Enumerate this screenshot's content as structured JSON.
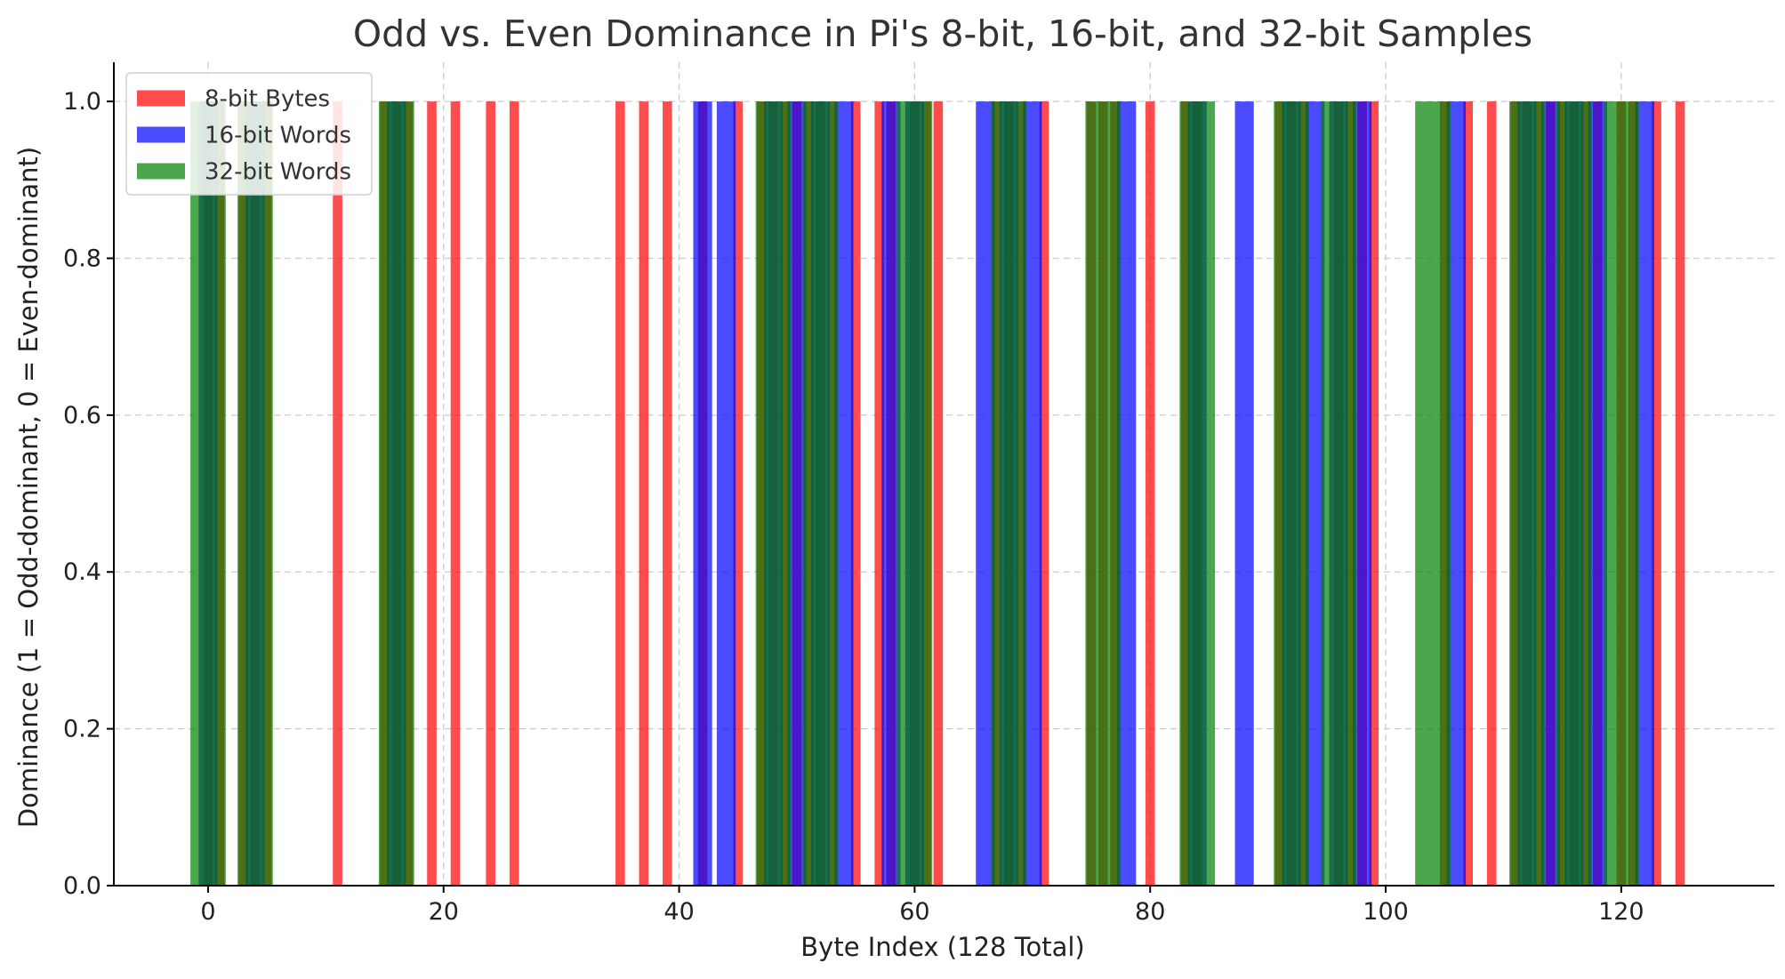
{
  "chart_data": {
    "type": "bar",
    "title": "Odd vs. Even Dominance in Pi's 8-bit, 16-bit, and 32-bit Samples",
    "xlabel": "Byte Index (128 Total)",
    "ylabel": "Dominance (1 = Odd-dominant, 0 = Even-dominant)",
    "xlim": [
      -8,
      133
    ],
    "ylim": [
      0,
      1.05
    ],
    "xticks": [
      0,
      20,
      40,
      60,
      80,
      100,
      120
    ],
    "xtick_labels": [
      "0",
      "20",
      "40",
      "60",
      "80",
      "100",
      "120"
    ],
    "yticks": [
      0.0,
      0.2,
      0.4,
      0.6,
      0.8,
      1.0
    ],
    "ytick_labels": [
      "0.0",
      "0.2",
      "0.4",
      "0.6",
      "0.8",
      "1.0"
    ],
    "grid": true,
    "legend_position": "top-left",
    "series": [
      {
        "name": "8-bit Bytes",
        "color": "#ff0000",
        "opacity": 0.7,
        "bar_width_units": 0.8,
        "x": [
          0,
          1,
          3,
          4,
          5,
          11,
          15,
          16,
          17,
          19,
          21,
          24,
          26,
          35,
          37,
          39,
          42,
          45,
          47,
          48,
          49,
          50,
          51,
          52,
          53,
          55,
          57,
          58,
          60,
          61,
          62,
          67,
          68,
          69,
          71,
          75,
          76,
          77,
          80,
          83,
          84,
          91,
          92,
          93,
          96,
          97,
          98,
          99,
          105,
          107,
          109,
          111,
          112,
          113,
          114,
          115,
          116,
          117,
          118,
          120,
          121,
          123,
          125
        ],
        "values": [
          1,
          1,
          1,
          1,
          1,
          1,
          1,
          1,
          1,
          1,
          1,
          1,
          1,
          1,
          1,
          1,
          1,
          1,
          1,
          1,
          1,
          1,
          1,
          1,
          1,
          1,
          1,
          1,
          1,
          1,
          1,
          1,
          1,
          1,
          1,
          1,
          1,
          1,
          1,
          1,
          1,
          1,
          1,
          1,
          1,
          1,
          1,
          1,
          1,
          1,
          1,
          1,
          1,
          1,
          1,
          1,
          1,
          1,
          1,
          1,
          1,
          1,
          1
        ]
      },
      {
        "name": "16-bit Words",
        "color": "#0000ff",
        "opacity": 0.7,
        "bar_width_units": 1.6,
        "x": [
          0,
          4,
          16,
          42,
          44,
          48,
          50,
          52,
          54,
          58,
          60,
          66,
          68,
          70,
          78,
          84,
          88,
          92,
          94,
          96,
          98,
          106,
          112,
          114,
          116,
          118,
          122
        ],
        "values": [
          1,
          1,
          1,
          1,
          1,
          1,
          1,
          1,
          1,
          1,
          1,
          1,
          1,
          1,
          1,
          1,
          1,
          1,
          1,
          1,
          1,
          1,
          1,
          1,
          1,
          1,
          1
        ]
      },
      {
        "name": "32-bit Words",
        "color": "#008000",
        "opacity": 0.7,
        "bar_width_units": 3.0,
        "x": [
          0,
          4,
          16,
          48,
          52,
          60,
          68,
          76,
          84,
          92,
          96,
          104,
          112,
          116,
          120
        ],
        "values": [
          1,
          1,
          1,
          1,
          1,
          1,
          1,
          1,
          1,
          1,
          1,
          1,
          1,
          1,
          1
        ]
      }
    ]
  }
}
